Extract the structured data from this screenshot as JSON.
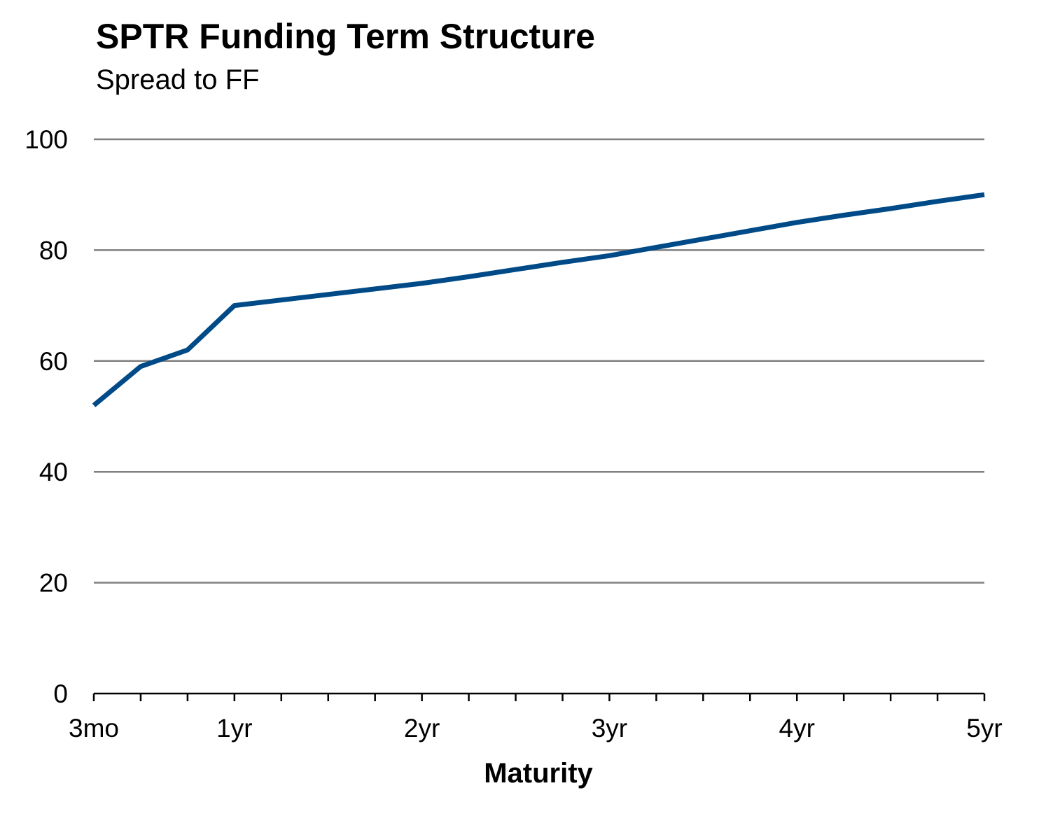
{
  "chart_data": {
    "type": "line",
    "title": "SPTR Funding Term Structure",
    "subtitle": "Spread to FF",
    "xlabel": "Maturity",
    "ylabel": "",
    "ylim": [
      0,
      100
    ],
    "yticks": [
      0,
      20,
      40,
      60,
      80,
      100
    ],
    "xlim": [
      0.25,
      5
    ],
    "xticks": [
      {
        "value": 0.25,
        "label": "3mo"
      },
      {
        "value": 1,
        "label": "1yr"
      },
      {
        "value": 2,
        "label": "2yr"
      },
      {
        "value": 3,
        "label": "3yr"
      },
      {
        "value": 4,
        "label": "4yr"
      },
      {
        "value": 5,
        "label": "5yr"
      }
    ],
    "minor_xticks": [
      0.5,
      0.75,
      1.25,
      1.5,
      1.75,
      2.25,
      2.5,
      2.75,
      3.25,
      3.5,
      3.75,
      4.25,
      4.5,
      4.75
    ],
    "grid": true,
    "legend": "none",
    "series": [
      {
        "color": "#004b87",
        "x": [
          0.25,
          0.5,
          0.75,
          1,
          2,
          2.25,
          2.5,
          2.75,
          3,
          3.25,
          3.5,
          3.75,
          4,
          4.25,
          4.5,
          4.75,
          5
        ],
        "y": [
          52,
          59,
          62,
          70,
          74,
          75.2,
          76.5,
          77.8,
          79,
          80.5,
          82,
          83.5,
          85,
          86.3,
          87.5,
          88.8,
          90
        ]
      }
    ]
  }
}
